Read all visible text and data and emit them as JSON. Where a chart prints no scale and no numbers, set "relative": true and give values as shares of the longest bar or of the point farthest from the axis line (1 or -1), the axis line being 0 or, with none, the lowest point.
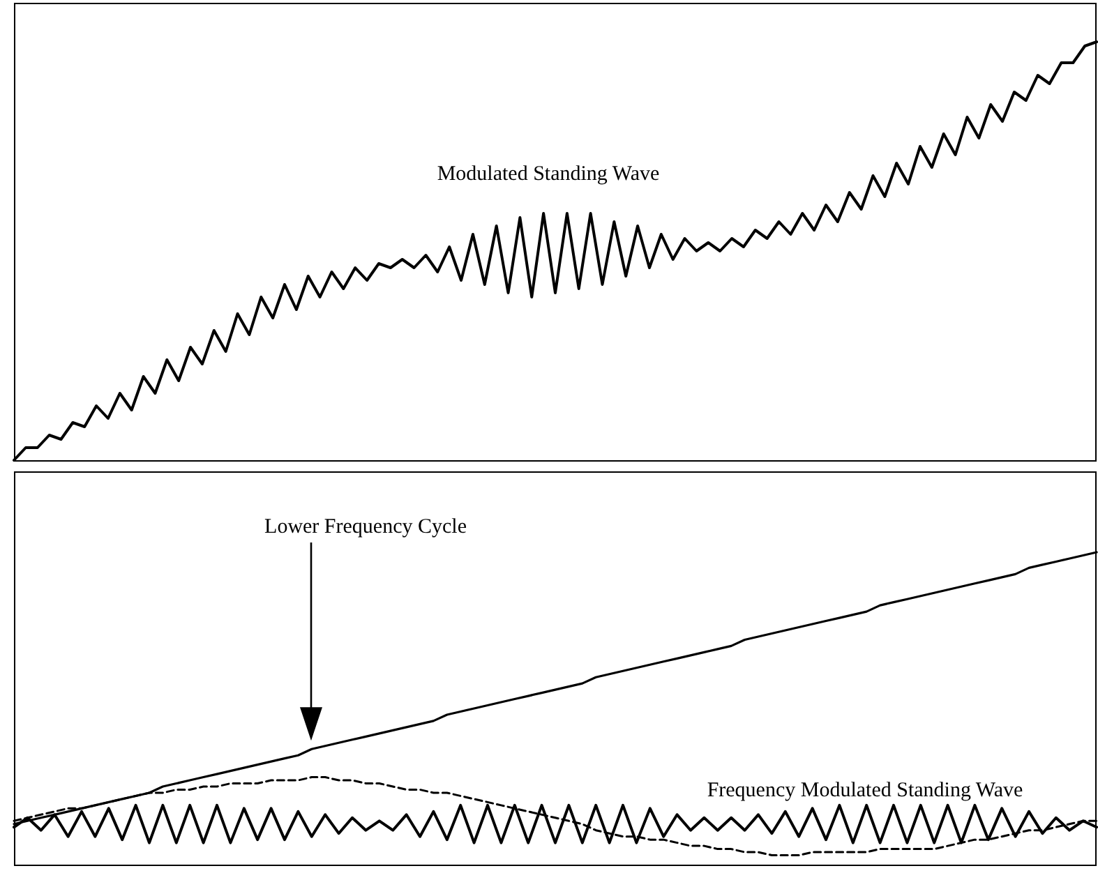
{
  "chart_data": [
    {
      "type": "line",
      "relative": true,
      "marker": "none",
      "categories": [
        null,
        null,
        null,
        null,
        null,
        null,
        null,
        null,
        null,
        null,
        null,
        null,
        null,
        null,
        null,
        null,
        null,
        null,
        null,
        null,
        null,
        null,
        null,
        null,
        null,
        null,
        null,
        null,
        null,
        null,
        null,
        null,
        null,
        null,
        null,
        null,
        null,
        null,
        null,
        null,
        null,
        null,
        null,
        null,
        null,
        null,
        null,
        null,
        null,
        null,
        null,
        null,
        null,
        null,
        null,
        null,
        null,
        null,
        null,
        null,
        null,
        null,
        null,
        null,
        null,
        null,
        null,
        null,
        null,
        null,
        null,
        null,
        null,
        null,
        null,
        null,
        null,
        null,
        null,
        null,
        null,
        null,
        null,
        null,
        null,
        null,
        null,
        null,
        null,
        null,
        null,
        null,
        null
      ],
      "series": [
        {
          "color": "#000000",
          "line_style": "solid",
          "values": [
            0,
            0.03,
            0.03,
            0.06,
            0.05,
            0.09,
            0.08,
            0.13,
            0.1,
            0.16,
            0.12,
            0.2,
            0.16,
            0.24,
            0.19,
            0.27,
            0.23,
            0.31,
            0.26,
            0.35,
            0.3,
            0.39,
            0.34,
            0.42,
            0.36,
            0.44,
            0.39,
            0.45,
            0.41,
            0.46,
            0.43,
            0.47,
            0.46,
            0.48,
            0.46,
            0.49,
            0.45,
            0.51,
            0.43,
            0.54,
            0.42,
            0.56,
            0.4,
            0.58,
            0.39,
            0.59,
            0.4,
            0.59,
            0.41,
            0.59,
            0.42,
            0.57,
            0.44,
            0.56,
            0.46,
            0.54,
            0.48,
            0.53,
            0.5,
            0.52,
            0.5,
            0.53,
            0.51,
            0.55,
            0.53,
            0.57,
            0.54,
            0.59,
            0.55,
            0.61,
            0.57,
            0.64,
            0.6,
            0.68,
            0.63,
            0.71,
            0.66,
            0.75,
            0.7,
            0.78,
            0.73,
            0.82,
            0.77,
            0.85,
            0.81,
            0.88,
            0.86,
            0.92,
            0.9,
            0.95,
            0.95,
            0.99,
            1
          ]
        }
      ],
      "annotations": [
        "Modulated Standing Wave"
      ]
    },
    {
      "type": "line",
      "relative": true,
      "marker": "none",
      "categories": [
        null,
        null,
        null,
        null,
        null,
        null,
        null,
        null,
        null,
        null,
        null,
        null,
        null,
        null,
        null,
        null,
        null,
        null,
        null,
        null,
        null,
        null,
        null,
        null,
        null,
        null,
        null,
        null,
        null,
        null,
        null,
        null,
        null,
        null,
        null,
        null,
        null,
        null,
        null,
        null,
        null,
        null,
        null,
        null,
        null,
        null,
        null,
        null,
        null,
        null,
        null,
        null,
        null,
        null,
        null,
        null,
        null,
        null,
        null,
        null,
        null,
        null,
        null,
        null,
        null,
        null,
        null,
        null,
        null,
        null,
        null,
        null,
        null,
        null,
        null,
        null,
        null,
        null,
        null,
        null,
        null
      ],
      "series": [
        {
          "color": "#000000",
          "line_style": "solid",
          "values": [
            0.12,
            0.15,
            0.11,
            0.16,
            0.09,
            0.17,
            0.09,
            0.18,
            0.08,
            0.19,
            0.07,
            0.19,
            0.07,
            0.19,
            0.07,
            0.19,
            0.07,
            0.18,
            0.08,
            0.18,
            0.08,
            0.17,
            0.09,
            0.16,
            0.1,
            0.15,
            0.11,
            0.14,
            0.11,
            0.16,
            0.09,
            0.17,
            0.08,
            0.19,
            0.07,
            0.19,
            0.07,
            0.19,
            0.07,
            0.19,
            0.07,
            0.19,
            0.07,
            0.19,
            0.07,
            0.19,
            0.07,
            0.18,
            0.09,
            0.16,
            0.11,
            0.15,
            0.11,
            0.15,
            0.11,
            0.16,
            0.1,
            0.17,
            0.09,
            0.18,
            0.08,
            0.19,
            0.07,
            0.19,
            0.07,
            0.19,
            0.07,
            0.19,
            0.07,
            0.19,
            0.07,
            0.19,
            0.08,
            0.18,
            0.09,
            0.17,
            0.1,
            0.15,
            0.11,
            0.14,
            0.12
          ]
        },
        {
          "color": "#000000",
          "line_style": "solid",
          "values": [
            0.13,
            0.14,
            0.15,
            0.16,
            0.17,
            0.18,
            0.19,
            0.2,
            0.21,
            0.22,
            0.23,
            0.25,
            0.26,
            0.27,
            0.28,
            0.29,
            0.3,
            0.31,
            0.32,
            0.33,
            0.34,
            0.35,
            0.37,
            0.38,
            0.39,
            0.4,
            0.41,
            0.42,
            0.43,
            0.44,
            0.45,
            0.46,
            0.48,
            0.49,
            0.5,
            0.51,
            0.52,
            0.53,
            0.54,
            0.55,
            0.56,
            0.57,
            0.58,
            0.6,
            0.61,
            0.62,
            0.63,
            0.64,
            0.65,
            0.66,
            0.67,
            0.68,
            0.69,
            0.7,
            0.72,
            0.73,
            0.74,
            0.75,
            0.76,
            0.77,
            0.78,
            0.79,
            0.8,
            0.81,
            0.83,
            0.84,
            0.85,
            0.86,
            0.87,
            0.88,
            0.89,
            0.9,
            0.91,
            0.92,
            0.93,
            0.95,
            0.96,
            0.97,
            0.98,
            0.99,
            1
          ]
        },
        {
          "color": "#000000",
          "line_style": "dashed",
          "values": [
            0.14,
            0.15,
            0.16,
            0.17,
            0.18,
            0.18,
            0.19,
            0.2,
            0.21,
            0.22,
            0.23,
            0.23,
            0.24,
            0.24,
            0.25,
            0.25,
            0.26,
            0.26,
            0.26,
            0.27,
            0.27,
            0.27,
            0.28,
            0.28,
            0.27,
            0.27,
            0.26,
            0.26,
            0.25,
            0.24,
            0.24,
            0.23,
            0.23,
            0.22,
            0.21,
            0.2,
            0.19,
            0.18,
            0.17,
            0.16,
            0.15,
            0.14,
            0.13,
            0.11,
            0.1,
            0.09,
            0.09,
            0.08,
            0.08,
            0.07,
            0.06,
            0.06,
            0.05,
            0.05,
            0.04,
            0.04,
            0.03,
            0.03,
            0.03,
            0.04,
            0.04,
            0.04,
            0.04,
            0.04,
            0.05,
            0.05,
            0.05,
            0.05,
            0.05,
            0.06,
            0.07,
            0.08,
            0.08,
            0.09,
            0.1,
            0.11,
            0.11,
            0.12,
            0.13,
            0.14,
            0.14
          ]
        }
      ],
      "annotations": [
        "Lower Frequency Cycle",
        "Frequency Modulated Standing Wave"
      ]
    }
  ]
}
